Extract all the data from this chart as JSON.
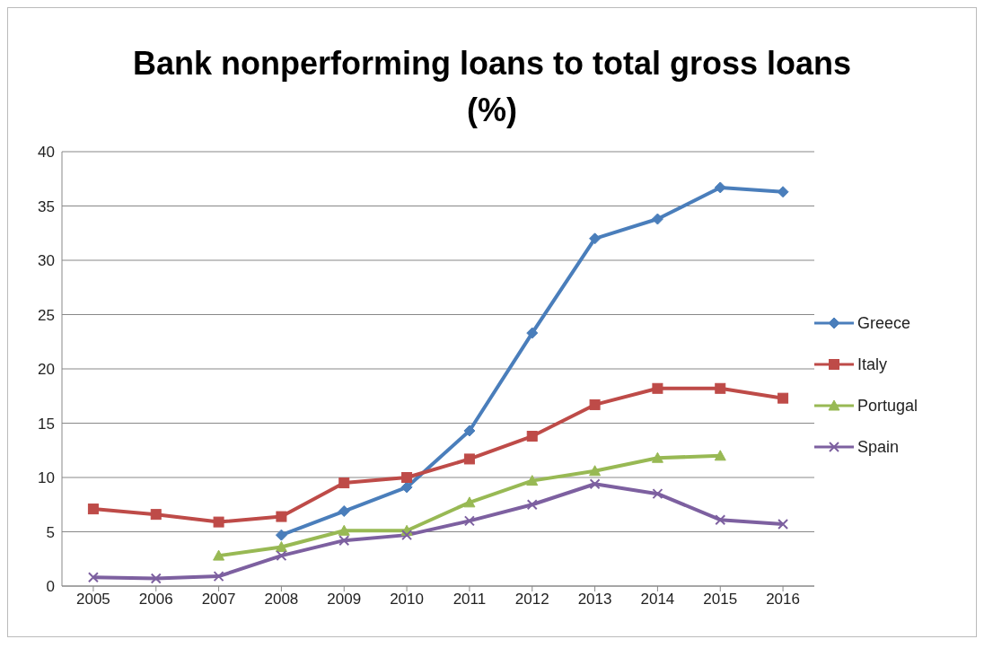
{
  "chart_data": {
    "type": "line",
    "title": "Bank nonperforming loans to total gross loans (%)",
    "categories": [
      "2005",
      "2006",
      "2007",
      "2008",
      "2009",
      "2010",
      "2011",
      "2012",
      "2013",
      "2014",
      "2015",
      "2016"
    ],
    "series": [
      {
        "name": "Greece",
        "color": "#4a7ebb",
        "marker": "diamond",
        "values": [
          null,
          null,
          null,
          4.7,
          6.9,
          9.1,
          14.3,
          23.3,
          32.0,
          33.8,
          36.7,
          36.3
        ]
      },
      {
        "name": "Italy",
        "color": "#be4b48",
        "marker": "square",
        "values": [
          7.1,
          6.6,
          5.9,
          6.4,
          9.5,
          10.0,
          11.7,
          13.8,
          16.7,
          18.2,
          18.2,
          17.3
        ]
      },
      {
        "name": "Portugal",
        "color": "#98b954",
        "marker": "triangle",
        "values": [
          null,
          null,
          2.8,
          3.6,
          5.1,
          5.1,
          7.7,
          9.7,
          10.6,
          11.8,
          12.0,
          null
        ]
      },
      {
        "name": "Spain",
        "color": "#7d60a0",
        "marker": "cross",
        "values": [
          0.8,
          0.7,
          0.9,
          2.8,
          4.2,
          4.7,
          6.0,
          7.5,
          9.4,
          8.5,
          6.1,
          5.7
        ]
      }
    ],
    "ylim": [
      0,
      40
    ],
    "yticks": [
      0,
      5,
      10,
      15,
      20,
      25,
      30,
      35,
      40
    ],
    "grid": "y",
    "legend": "right",
    "line_style": "solid"
  }
}
